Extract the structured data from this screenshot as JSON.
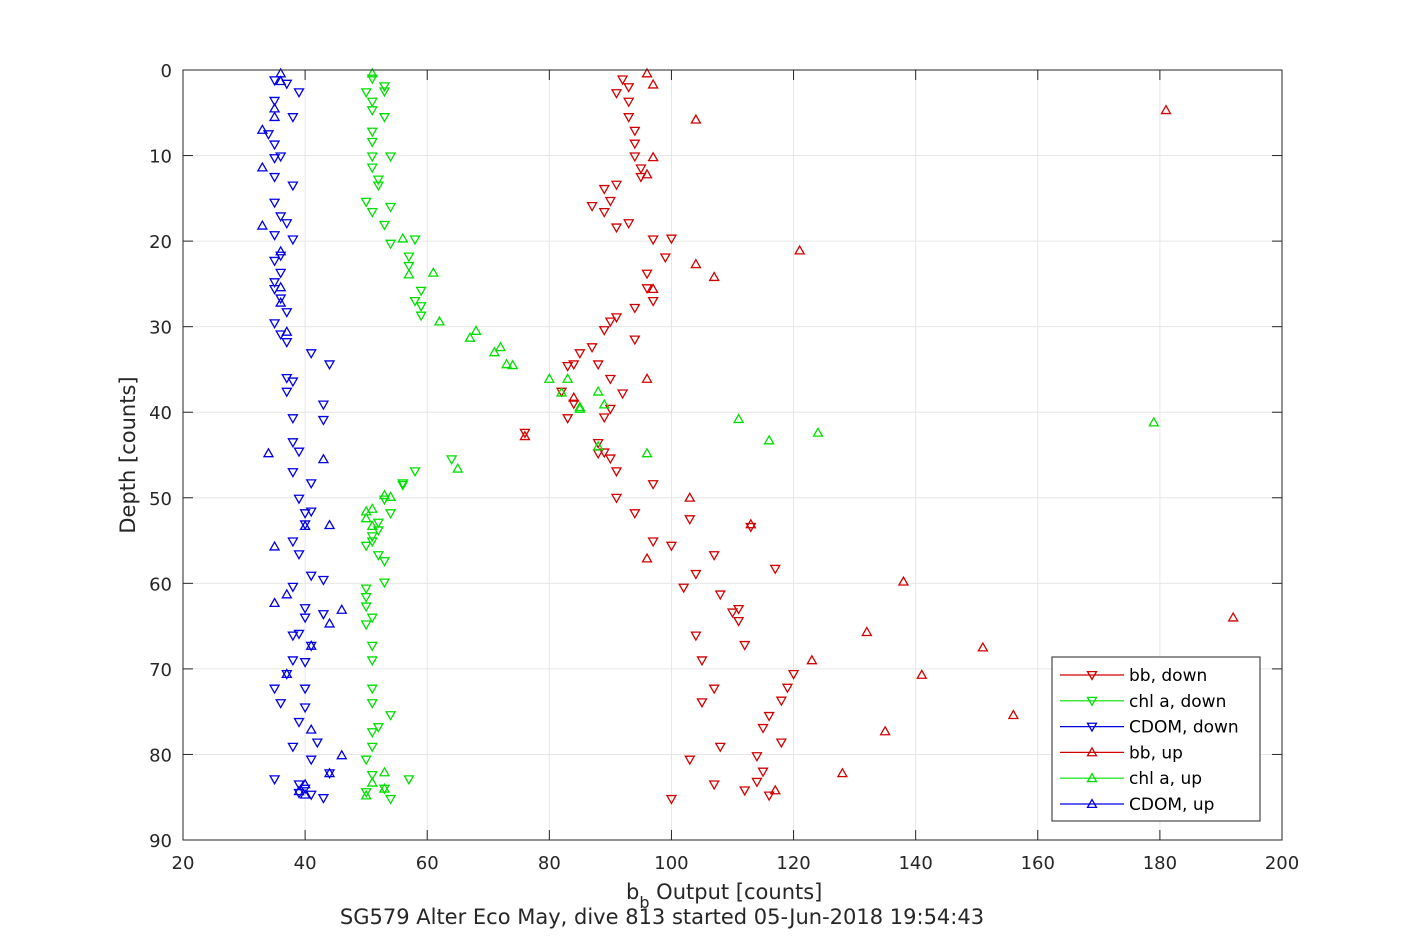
{
  "chart_data": {
    "type": "scatter",
    "xlabel_main": "b",
    "xlabel_sub": "b",
    "xlabel_rest": " Output [counts]",
    "ylabel": "Depth [counts]",
    "caption": "SG579 Alter Eco May, dive 813 started 05-Jun-2018 19:54:43",
    "xlim": [
      20,
      200
    ],
    "ylim": [
      0,
      90
    ],
    "y_reversed": true,
    "grid": true,
    "legend_position": "bottom-right",
    "xticks": [
      "20",
      "40",
      "60",
      "80",
      "100",
      "120",
      "140",
      "160",
      "180",
      "200"
    ],
    "yticks": [
      "0",
      "10",
      "20",
      "30",
      "40",
      "50",
      "60",
      "70",
      "80",
      "90"
    ],
    "series": [
      {
        "name": "bb, down",
        "color": "#d40000",
        "marker": "triangle-down",
        "points": [
          [
            92,
            1.1
          ],
          [
            93,
            2
          ],
          [
            91,
            2.7
          ],
          [
            93,
            3.7
          ],
          [
            93,
            5.5
          ],
          [
            94,
            7.1
          ],
          [
            94,
            8.6
          ],
          [
            94,
            10.1
          ],
          [
            95,
            11.5
          ],
          [
            95,
            12.5
          ],
          [
            91,
            13.4
          ],
          [
            89,
            13.9
          ],
          [
            90,
            15.3
          ],
          [
            89,
            16.6
          ],
          [
            87,
            15.9
          ],
          [
            93,
            17.9
          ],
          [
            91,
            18.4
          ],
          [
            97,
            19.8
          ],
          [
            100,
            19.7
          ],
          [
            99,
            21.9
          ],
          [
            96,
            23.8
          ],
          [
            96,
            25.5
          ],
          [
            97,
            27
          ],
          [
            94,
            27.8
          ],
          [
            91,
            28.9
          ],
          [
            90,
            29.4
          ],
          [
            89,
            30.4
          ],
          [
            94,
            31.5
          ],
          [
            87,
            32.4
          ],
          [
            85,
            33.1
          ],
          [
            84,
            34.4
          ],
          [
            83,
            34.6
          ],
          [
            88,
            34.4
          ],
          [
            90,
            36.1
          ],
          [
            92,
            37.8
          ],
          [
            82,
            37.6
          ],
          [
            84,
            39
          ],
          [
            90,
            39.6
          ],
          [
            89,
            40.6
          ],
          [
            83,
            40.7
          ],
          [
            76,
            42.4
          ],
          [
            88,
            43.6
          ],
          [
            88,
            44.8
          ],
          [
            89,
            44.7
          ],
          [
            90,
            45.4
          ],
          [
            91,
            46.9
          ],
          [
            97,
            48.4
          ],
          [
            91,
            50
          ],
          [
            94,
            51.8
          ],
          [
            103,
            52.5
          ],
          [
            113,
            53.4
          ],
          [
            97,
            55.1
          ],
          [
            100,
            55.6
          ],
          [
            107,
            56.7
          ],
          [
            117,
            58.3
          ],
          [
            104,
            58.9
          ],
          [
            102,
            60.5
          ],
          [
            108,
            61.3
          ],
          [
            111,
            63
          ],
          [
            110,
            63.4
          ],
          [
            111,
            64.4
          ],
          [
            104,
            66.1
          ],
          [
            112,
            67.2
          ],
          [
            105,
            69
          ],
          [
            120,
            70.6
          ],
          [
            119,
            72.2
          ],
          [
            107,
            72.3
          ],
          [
            118,
            73.7
          ],
          [
            105,
            73.9
          ],
          [
            116,
            75.5
          ],
          [
            115,
            76.9
          ],
          [
            118,
            78.6
          ],
          [
            108,
            79.1
          ],
          [
            114,
            80.2
          ],
          [
            103,
            80.6
          ],
          [
            115,
            82
          ],
          [
            107,
            83.5
          ],
          [
            114,
            83.2
          ],
          [
            112,
            84.2
          ],
          [
            116,
            84.8
          ],
          [
            100,
            85.2
          ]
        ]
      },
      {
        "name": "chl a, down",
        "color": "#00e000",
        "marker": "triangle-down",
        "points": [
          [
            51,
            1
          ],
          [
            53,
            1.9
          ],
          [
            50,
            2.6
          ],
          [
            53,
            2.5
          ],
          [
            51,
            3.7
          ],
          [
            51,
            4.7
          ],
          [
            53,
            5.5
          ],
          [
            51,
            7.2
          ],
          [
            51,
            8.4
          ],
          [
            51,
            10.1
          ],
          [
            54,
            10.1
          ],
          [
            51,
            11.4
          ],
          [
            52,
            13.5
          ],
          [
            52,
            12.8
          ],
          [
            50,
            15.4
          ],
          [
            54,
            16
          ],
          [
            51,
            16.6
          ],
          [
            53,
            18.1
          ],
          [
            58,
            19.8
          ],
          [
            57,
            21.8
          ],
          [
            57,
            22.9
          ],
          [
            59,
            25.8
          ],
          [
            59,
            27.6
          ],
          [
            58,
            27
          ],
          [
            59,
            28.7
          ],
          [
            54,
            20.3
          ],
          [
            64,
            45.5
          ],
          [
            58,
            46.9
          ],
          [
            56,
            48.5
          ],
          [
            53,
            50.2
          ],
          [
            54,
            51.8
          ],
          [
            52,
            52.9
          ],
          [
            52,
            53.8
          ],
          [
            51,
            54.5
          ],
          [
            51,
            55.1
          ],
          [
            50,
            55.6
          ],
          [
            52,
            56.7
          ],
          [
            53,
            57.4
          ],
          [
            53,
            59.9
          ],
          [
            50,
            60.6
          ],
          [
            50,
            61.6
          ],
          [
            50,
            62.7
          ],
          [
            51,
            64
          ],
          [
            50,
            64.8
          ],
          [
            51,
            67.3
          ],
          [
            51,
            69
          ],
          [
            51,
            72.3
          ],
          [
            51,
            74
          ],
          [
            54,
            75.4
          ],
          [
            52,
            76.8
          ],
          [
            51,
            77.4
          ],
          [
            51,
            79.1
          ],
          [
            50,
            80.6
          ],
          [
            51,
            82.4
          ],
          [
            50,
            84.4
          ],
          [
            53,
            84
          ],
          [
            54,
            85.2
          ],
          [
            56,
            48.3
          ],
          [
            57,
            82.9
          ]
        ]
      },
      {
        "name": "CDOM, down",
        "color": "#0000e6",
        "marker": "triangle-down",
        "points": [
          [
            35,
            1.2
          ],
          [
            37,
            1.6
          ],
          [
            39,
            2.6
          ],
          [
            35,
            3.6
          ],
          [
            38,
            5.5
          ],
          [
            34,
            7.5
          ],
          [
            35,
            8.7
          ],
          [
            36,
            10.1
          ],
          [
            35,
            10.3
          ],
          [
            35,
            12.5
          ],
          [
            38,
            13.5
          ],
          [
            35,
            15.5
          ],
          [
            36,
            17.1
          ],
          [
            37,
            17.9
          ],
          [
            35,
            19.3
          ],
          [
            38,
            19.8
          ],
          [
            36,
            21.7
          ],
          [
            35,
            22.3
          ],
          [
            36,
            23.7
          ],
          [
            35,
            24.8
          ],
          [
            35,
            25.6
          ],
          [
            36,
            26.7
          ],
          [
            37,
            28.3
          ],
          [
            35,
            29.6
          ],
          [
            36,
            30.9
          ],
          [
            37,
            31.8
          ],
          [
            41,
            33.1
          ],
          [
            44,
            34.4
          ],
          [
            37,
            36
          ],
          [
            38,
            36.4
          ],
          [
            37,
            37.6
          ],
          [
            43,
            39.1
          ],
          [
            38,
            40.7
          ],
          [
            43,
            40.9
          ],
          [
            38,
            43.5
          ],
          [
            39,
            44.6
          ],
          [
            38,
            47
          ],
          [
            41,
            48.3
          ],
          [
            39,
            50.1
          ],
          [
            41,
            51.6
          ],
          [
            40,
            51.8
          ],
          [
            40,
            53.1
          ],
          [
            38,
            55.1
          ],
          [
            39,
            56.6
          ],
          [
            41,
            59.1
          ],
          [
            43,
            59.6
          ],
          [
            38,
            60.4
          ],
          [
            40,
            62.9
          ],
          [
            43,
            63.6
          ],
          [
            40,
            64
          ],
          [
            38,
            66.1
          ],
          [
            39,
            65.9
          ],
          [
            41,
            67.3
          ],
          [
            38,
            69
          ],
          [
            40,
            69.2
          ],
          [
            37,
            70.6
          ],
          [
            35,
            72.3
          ],
          [
            40,
            72.3
          ],
          [
            36,
            74
          ],
          [
            40,
            74.5
          ],
          [
            39,
            76.2
          ],
          [
            42,
            78.6
          ],
          [
            38,
            79.1
          ],
          [
            41,
            80.6
          ],
          [
            44,
            82.2
          ],
          [
            35,
            82.9
          ],
          [
            39,
            83.5
          ],
          [
            40,
            84
          ],
          [
            41,
            84.7
          ],
          [
            43,
            85.1
          ],
          [
            39,
            84.5
          ]
        ]
      },
      {
        "name": "bb, up",
        "color": "#d40000",
        "marker": "triangle-up",
        "points": [
          [
            96,
            0.4
          ],
          [
            97,
            1.7
          ],
          [
            181,
            4.7
          ],
          [
            104,
            5.8
          ],
          [
            97,
            10.2
          ],
          [
            96,
            12.2
          ],
          [
            121,
            21.1
          ],
          [
            104,
            22.7
          ],
          [
            107,
            24.2
          ],
          [
            97,
            25.6
          ],
          [
            96,
            36.1
          ],
          [
            84,
            38.3
          ],
          [
            76,
            42.8
          ],
          [
            103,
            50
          ],
          [
            113,
            53.1
          ],
          [
            96,
            57.1
          ],
          [
            138,
            59.8
          ],
          [
            192,
            64
          ],
          [
            132,
            65.7
          ],
          [
            151,
            67.5
          ],
          [
            141,
            70.7
          ],
          [
            123,
            69
          ],
          [
            156,
            75.4
          ],
          [
            135,
            77.3
          ],
          [
            128,
            82.2
          ],
          [
            117,
            84.2
          ]
        ]
      },
      {
        "name": "chl a, up",
        "color": "#00e000",
        "marker": "triangle-up",
        "points": [
          [
            51,
            0.4
          ],
          [
            56,
            19.7
          ],
          [
            57,
            23.9
          ],
          [
            61,
            23.7
          ],
          [
            62,
            29.4
          ],
          [
            68,
            30.5
          ],
          [
            67,
            31.3
          ],
          [
            72,
            32.4
          ],
          [
            71,
            33
          ],
          [
            73,
            34.4
          ],
          [
            74,
            34.5
          ],
          [
            80,
            36.1
          ],
          [
            83,
            36.1
          ],
          [
            82,
            37.7
          ],
          [
            88,
            37.6
          ],
          [
            85,
            39.6
          ],
          [
            89,
            39.1
          ],
          [
            85,
            39.4
          ],
          [
            111,
            40.8
          ],
          [
            124,
            42.4
          ],
          [
            179,
            41.2
          ],
          [
            116,
            43.3
          ],
          [
            88,
            44
          ],
          [
            96,
            44.8
          ],
          [
            65,
            46.6
          ],
          [
            54,
            49.9
          ],
          [
            53,
            49.7
          ],
          [
            51,
            51.3
          ],
          [
            50,
            51.6
          ],
          [
            50,
            52.4
          ],
          [
            51,
            53.3
          ],
          [
            53,
            82.1
          ],
          [
            51,
            83.3
          ],
          [
            53,
            84
          ],
          [
            50,
            84.8
          ]
        ]
      },
      {
        "name": "CDOM, up",
        "color": "#0000e6",
        "marker": "triangle-up",
        "points": [
          [
            36,
            0.4
          ],
          [
            36,
            1.3
          ],
          [
            35,
            4.5
          ],
          [
            35,
            5.5
          ],
          [
            33,
            7
          ],
          [
            33,
            11.4
          ],
          [
            33,
            18.2
          ],
          [
            36,
            21.2
          ],
          [
            36,
            25.4
          ],
          [
            36,
            27.2
          ],
          [
            37,
            30.6
          ],
          [
            43,
            45.5
          ],
          [
            34,
            44.8
          ],
          [
            40,
            53.3
          ],
          [
            44,
            53.2
          ],
          [
            35,
            55.7
          ],
          [
            37,
            61.3
          ],
          [
            35,
            62.3
          ],
          [
            46,
            63.1
          ],
          [
            44,
            64.7
          ],
          [
            41,
            67.3
          ],
          [
            37,
            70.6
          ],
          [
            41,
            77.1
          ],
          [
            46,
            80.1
          ],
          [
            44,
            82.2
          ],
          [
            40,
            83.5
          ],
          [
            40,
            84.7
          ],
          [
            39,
            84.3
          ]
        ]
      }
    ]
  }
}
